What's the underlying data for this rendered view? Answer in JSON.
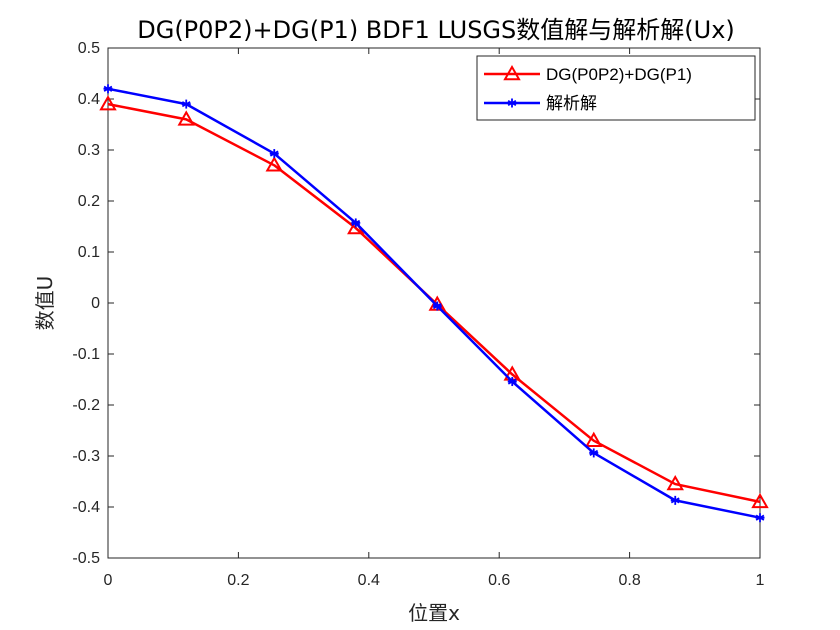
{
  "chart_data": {
    "type": "line",
    "title": "DG(P0P2)+DG(P1) BDF1 LUSGS数值解与解析解(Ux)",
    "xlabel": "位置x",
    "ylabel": "数值U",
    "xlim": [
      0,
      1
    ],
    "ylim": [
      -0.5,
      0.5
    ],
    "xticks": [
      "0",
      "0.2",
      "0.4",
      "0.6",
      "0.8",
      "1"
    ],
    "xtick_values": [
      0,
      0.2,
      0.4,
      0.6,
      0.8,
      1
    ],
    "yticks": [
      "0.5",
      "0.4",
      "0.3",
      "0.2",
      "0.1",
      "0",
      "-0.1",
      "-0.2",
      "-0.3",
      "-0.4",
      "-0.5"
    ],
    "ytick_values": [
      0.5,
      0.4,
      0.3,
      0.2,
      0.1,
      0,
      -0.1,
      -0.2,
      -0.3,
      -0.4,
      -0.5
    ],
    "grid": false,
    "legend_position": "top-right",
    "series": [
      {
        "name": "DG(P0P2)+DG(P1)",
        "color": "#ff0000",
        "marker": "triangle",
        "x": [
          0,
          0.12,
          0.255,
          0.38,
          0.505,
          0.62,
          0.745,
          0.87,
          1.0
        ],
        "y": [
          0.39,
          0.36,
          0.27,
          0.147,
          -0.003,
          -0.14,
          -0.27,
          -0.355,
          -0.39
        ]
      },
      {
        "name": "解析解",
        "color": "#0000ff",
        "marker": "asterisk",
        "x": [
          0,
          0.12,
          0.255,
          0.38,
          0.505,
          0.62,
          0.745,
          0.87,
          1.0
        ],
        "y": [
          0.42,
          0.39,
          0.293,
          0.157,
          -0.006,
          -0.154,
          -0.294,
          -0.387,
          -0.421
        ]
      }
    ]
  }
}
